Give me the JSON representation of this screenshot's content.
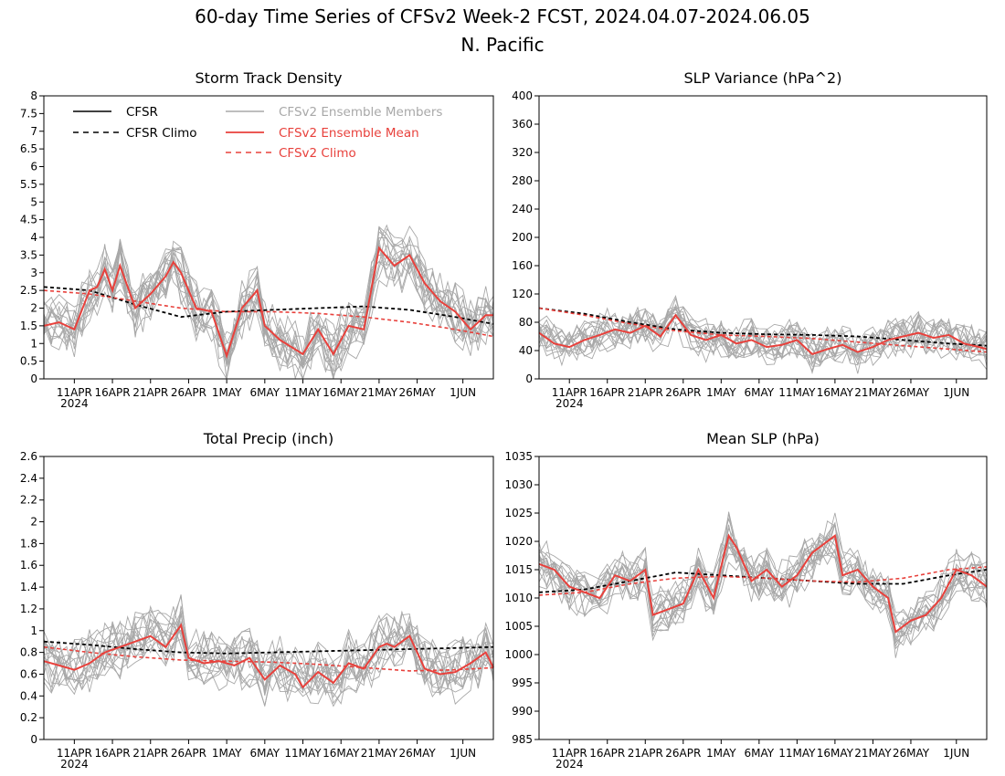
{
  "figure": {
    "title_line1": "60-day Time Series of CFSv2 Week-2 FCST, 2024.04.07-2024.06.05",
    "title_line2": "N. Pacific"
  },
  "colors": {
    "cfsr": "#000000",
    "ensemble_members": "#a8a8a8",
    "ensemble_mean": "#e8413c",
    "cfsv2_climo": "#e8413c"
  },
  "legend": {
    "cfsr": "CFSR",
    "cfsr_climo": "CFSR Climo",
    "members": "CFSv2 Ensemble Members",
    "mean": "CFSv2 Ensemble Mean",
    "cfsv2_climo": "CFSv2 Climo"
  },
  "x_axis": {
    "tick_labels": [
      "11APR",
      "16APR",
      "21APR",
      "26APR",
      "1MAY",
      "6MAY",
      "11MAY",
      "16MAY",
      "21MAY",
      "26MAY",
      "1JUN"
    ],
    "tick_day_index": [
      4,
      9,
      14,
      19,
      24,
      29,
      34,
      39,
      44,
      49,
      55
    ],
    "year_label": "2024",
    "n_days": 60
  },
  "chart_data": [
    {
      "type": "line",
      "title": "Storm Track Density",
      "ylim": [
        0,
        8
      ],
      "yticks": [
        "0",
        "0.5",
        "1",
        "1.5",
        "2",
        "2.5",
        "3",
        "3.5",
        "4",
        "4.5",
        "5",
        "5.5",
        "6",
        "6.5",
        "7",
        "7.5",
        "8"
      ],
      "series": [
        {
          "name": "CFSR Climo",
          "x": [
            0,
            6,
            12,
            18,
            24,
            30,
            36,
            42,
            48,
            54,
            59
          ],
          "values": [
            2.6,
            2.5,
            2.1,
            1.75,
            1.9,
            1.95,
            2.0,
            2.05,
            1.95,
            1.75,
            1.55
          ]
        },
        {
          "name": "CFSv2 Climo",
          "x": [
            0,
            6,
            12,
            18,
            24,
            30,
            36,
            42,
            48,
            54,
            59
          ],
          "values": [
            2.5,
            2.4,
            2.2,
            2.0,
            1.9,
            1.9,
            1.85,
            1.75,
            1.6,
            1.4,
            1.2
          ]
        },
        {
          "name": "CFSv2 Ensemble Mean",
          "x": [
            0,
            2,
            4,
            6,
            7,
            8,
            9,
            10,
            12,
            14,
            16,
            17,
            18,
            20,
            22,
            24,
            26,
            28,
            29,
            31,
            34,
            36,
            38,
            40,
            42,
            44,
            46,
            48,
            50,
            52,
            54,
            56,
            58,
            59
          ],
          "values": [
            1.5,
            1.6,
            1.4,
            2.5,
            2.6,
            3.1,
            2.5,
            3.2,
            2.0,
            2.4,
            2.9,
            3.3,
            3.0,
            2.0,
            1.9,
            0.65,
            2.0,
            2.5,
            1.5,
            1.1,
            0.7,
            1.4,
            0.7,
            1.5,
            1.4,
            3.7,
            3.2,
            3.5,
            2.7,
            2.2,
            1.9,
            1.4,
            1.8,
            1.8
          ]
        }
      ]
    },
    {
      "type": "line",
      "title": "SLP Variance (hPa^2)",
      "ylim": [
        0,
        400
      ],
      "yticks": [
        "0",
        "40",
        "80",
        "120",
        "160",
        "200",
        "240",
        "280",
        "320",
        "360",
        "400"
      ],
      "series": [
        {
          "name": "CFSR Climo",
          "x": [
            0,
            6,
            12,
            18,
            24,
            30,
            36,
            42,
            48,
            54,
            59
          ],
          "values": [
            100,
            92,
            80,
            70,
            65,
            63,
            62,
            60,
            55,
            50,
            47
          ]
        },
        {
          "name": "CFSv2 Climo",
          "x": [
            0,
            6,
            12,
            18,
            24,
            30,
            36,
            42,
            48,
            54,
            59
          ],
          "values": [
            100,
            90,
            78,
            68,
            62,
            60,
            57,
            52,
            47,
            42,
            38
          ]
        },
        {
          "name": "CFSv2 Ensemble Mean",
          "x": [
            0,
            2,
            4,
            6,
            8,
            10,
            12,
            14,
            16,
            18,
            20,
            22,
            24,
            26,
            28,
            30,
            32,
            34,
            36,
            38,
            40,
            42,
            44,
            46,
            48,
            50,
            52,
            54,
            56,
            58,
            59
          ],
          "values": [
            65,
            50,
            45,
            55,
            62,
            70,
            65,
            75,
            60,
            90,
            62,
            55,
            62,
            50,
            55,
            45,
            48,
            55,
            35,
            42,
            48,
            38,
            45,
            55,
            60,
            65,
            58,
            62,
            50,
            45,
            42
          ]
        }
      ]
    },
    {
      "type": "line",
      "title": "Total Precip (inch)",
      "ylim": [
        0,
        2.6
      ],
      "yticks": [
        "0",
        "0.2",
        "0.4",
        "0.6",
        "0.8",
        "1",
        "1.2",
        "1.4",
        "1.6",
        "1.8",
        "2",
        "2.2",
        "2.4",
        "2.6"
      ],
      "series": [
        {
          "name": "CFSR Climo",
          "x": [
            0,
            6,
            12,
            18,
            24,
            30,
            36,
            42,
            48,
            54,
            59
          ],
          "values": [
            0.9,
            0.87,
            0.83,
            0.8,
            0.79,
            0.8,
            0.81,
            0.82,
            0.83,
            0.84,
            0.85
          ]
        },
        {
          "name": "CFSv2 Climo",
          "x": [
            0,
            6,
            12,
            18,
            24,
            30,
            36,
            42,
            48,
            54,
            59
          ],
          "values": [
            0.85,
            0.8,
            0.76,
            0.73,
            0.72,
            0.71,
            0.69,
            0.66,
            0.63,
            0.64,
            0.66
          ]
        },
        {
          "name": "CFSv2 Ensemble Mean",
          "x": [
            0,
            2,
            4,
            6,
            8,
            10,
            12,
            14,
            16,
            18,
            19,
            21,
            23,
            25,
            27,
            29,
            31,
            33,
            34,
            36,
            38,
            40,
            42,
            44,
            45,
            46,
            48,
            50,
            52,
            54,
            56,
            58,
            59
          ],
          "values": [
            0.72,
            0.68,
            0.64,
            0.7,
            0.8,
            0.85,
            0.9,
            0.95,
            0.85,
            1.05,
            0.75,
            0.7,
            0.72,
            0.68,
            0.75,
            0.55,
            0.68,
            0.6,
            0.48,
            0.62,
            0.52,
            0.7,
            0.65,
            0.85,
            0.88,
            0.85,
            0.95,
            0.65,
            0.6,
            0.62,
            0.7,
            0.8,
            0.66
          ]
        }
      ]
    },
    {
      "type": "line",
      "title": "Mean SLP (hPa)",
      "ylim": [
        985,
        1035
      ],
      "yticks": [
        "985",
        "990",
        "995",
        "1000",
        "1005",
        "1010",
        "1015",
        "1020",
        "1025",
        "1030",
        "1035"
      ],
      "series": [
        {
          "name": "CFSR Climo",
          "x": [
            0,
            6,
            12,
            18,
            24,
            30,
            36,
            42,
            48,
            54,
            59
          ],
          "values": [
            1011,
            1011.5,
            1013,
            1014.5,
            1014,
            1013.5,
            1013,
            1012.5,
            1012.5,
            1014,
            1015
          ]
        },
        {
          "name": "CFSv2 Climo",
          "x": [
            0,
            6,
            12,
            18,
            24,
            30,
            36,
            42,
            48,
            54,
            59
          ],
          "values": [
            1010.5,
            1011,
            1012.5,
            1013.5,
            1013.8,
            1013.5,
            1013,
            1012.8,
            1013.5,
            1015,
            1015.5
          ]
        },
        {
          "name": "CFSv2 Ensemble Mean",
          "x": [
            0,
            2,
            4,
            6,
            8,
            10,
            12,
            14,
            15,
            17,
            19,
            21,
            23,
            25,
            26,
            28,
            30,
            32,
            34,
            36,
            37,
            39,
            40,
            42,
            44,
            46,
            47,
            49,
            51,
            53,
            55,
            57,
            59
          ],
          "values": [
            1016,
            1015,
            1012,
            1011,
            1010,
            1014,
            1013,
            1015,
            1007,
            1008,
            1009,
            1015,
            1010,
            1021,
            1019,
            1013,
            1015,
            1012,
            1014,
            1018,
            1019,
            1021,
            1014,
            1015,
            1012,
            1010,
            1004,
            1006,
            1007,
            1010,
            1015,
            1014,
            1012
          ]
        }
      ]
    }
  ]
}
